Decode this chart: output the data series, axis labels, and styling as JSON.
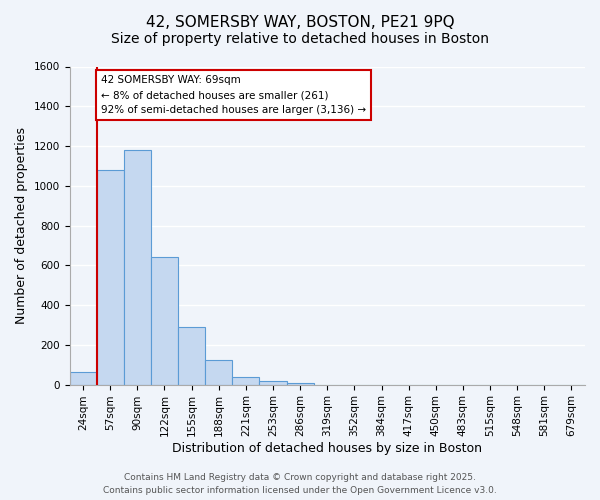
{
  "title1": "42, SOMERSBY WAY, BOSTON, PE21 9PQ",
  "title2": "Size of property relative to detached houses in Boston",
  "xlabel": "Distribution of detached houses by size in Boston",
  "ylabel": "Number of detached properties",
  "bar_values": [
    65,
    1080,
    1180,
    640,
    290,
    125,
    40,
    20,
    10,
    0,
    0,
    0,
    0,
    0,
    0,
    0,
    0,
    0,
    0
  ],
  "bin_labels": [
    "24sqm",
    "57sqm",
    "90sqm",
    "122sqm",
    "155sqm",
    "188sqm",
    "221sqm",
    "253sqm",
    "286sqm",
    "319sqm",
    "352sqm",
    "384sqm",
    "417sqm",
    "450sqm",
    "483sqm",
    "515sqm",
    "548sqm",
    "581sqm",
    "679sqm"
  ],
  "bar_color": "#c5d8f0",
  "bar_edge_color": "#5b9bd5",
  "ylim": [
    0,
    1600
  ],
  "yticks": [
    0,
    200,
    400,
    600,
    800,
    1000,
    1200,
    1400,
    1600
  ],
  "vline_x": 1,
  "vline_color": "#cc0000",
  "annotation_title": "42 SOMERSBY WAY: 69sqm",
  "annotation_line1": "← 8% of detached houses are smaller (261)",
  "annotation_line2": "92% of semi-detached houses are larger (3,136) →",
  "annotation_box_color": "#ffffff",
  "annotation_box_edge": "#cc0000",
  "footer1": "Contains HM Land Registry data © Crown copyright and database right 2025.",
  "footer2": "Contains public sector information licensed under the Open Government Licence v3.0.",
  "background_color": "#f0f4fa",
  "grid_color": "#ffffff",
  "title_fontsize": 11,
  "subtitle_fontsize": 10,
  "label_fontsize": 9,
  "tick_fontsize": 7.5,
  "footer_fontsize": 6.5
}
